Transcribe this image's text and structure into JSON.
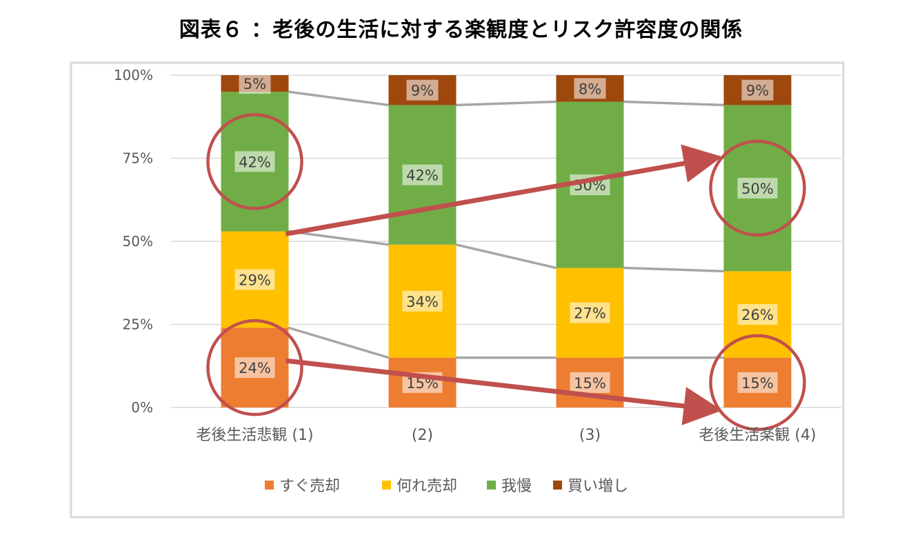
{
  "title": "図表６ ：老後の生活に対する楽観度とリスク許容度の関係",
  "chart_data": {
    "type": "bar",
    "stacked": true,
    "categories": [
      "老後生活悲観 (1)",
      "(2)",
      "(3)",
      "老後生活楽観 (4)"
    ],
    "series": [
      {
        "name": "すぐ売却",
        "color": "#ED7D31",
        "values": [
          24,
          15,
          15,
          15
        ],
        "labels": [
          "24%",
          "15%",
          "15%",
          "15%"
        ]
      },
      {
        "name": "何れ売却",
        "color": "#FFC000",
        "values": [
          29,
          34,
          27,
          26
        ],
        "labels": [
          "29%",
          "34%",
          "27%",
          "26%"
        ]
      },
      {
        "name": "我慢",
        "color": "#70AD47",
        "values": [
          42,
          42,
          50,
          50
        ],
        "labels": [
          "42%",
          "42%",
          "50%",
          "50%"
        ]
      },
      {
        "name": "買い増し",
        "color": "#9E480E",
        "values": [
          5,
          9,
          8,
          9
        ],
        "labels": [
          "5%",
          "9%",
          "8%",
          "9%"
        ]
      }
    ],
    "ylim": [
      0,
      100
    ],
    "yticks": [
      "0%",
      "25%",
      "50%",
      "75%",
      "100%"
    ],
    "grid": true,
    "legend": "bottom",
    "annotation_color": "#C0504D",
    "highlighted": [
      {
        "series": "我慢",
        "categories": [
          "老後生活悲観 (1)",
          "老後生活楽観 (4)"
        ]
      },
      {
        "series": "すぐ売却",
        "categories": [
          "老後生活悲観 (1)",
          "老後生活楽観 (4)"
        ]
      }
    ]
  }
}
